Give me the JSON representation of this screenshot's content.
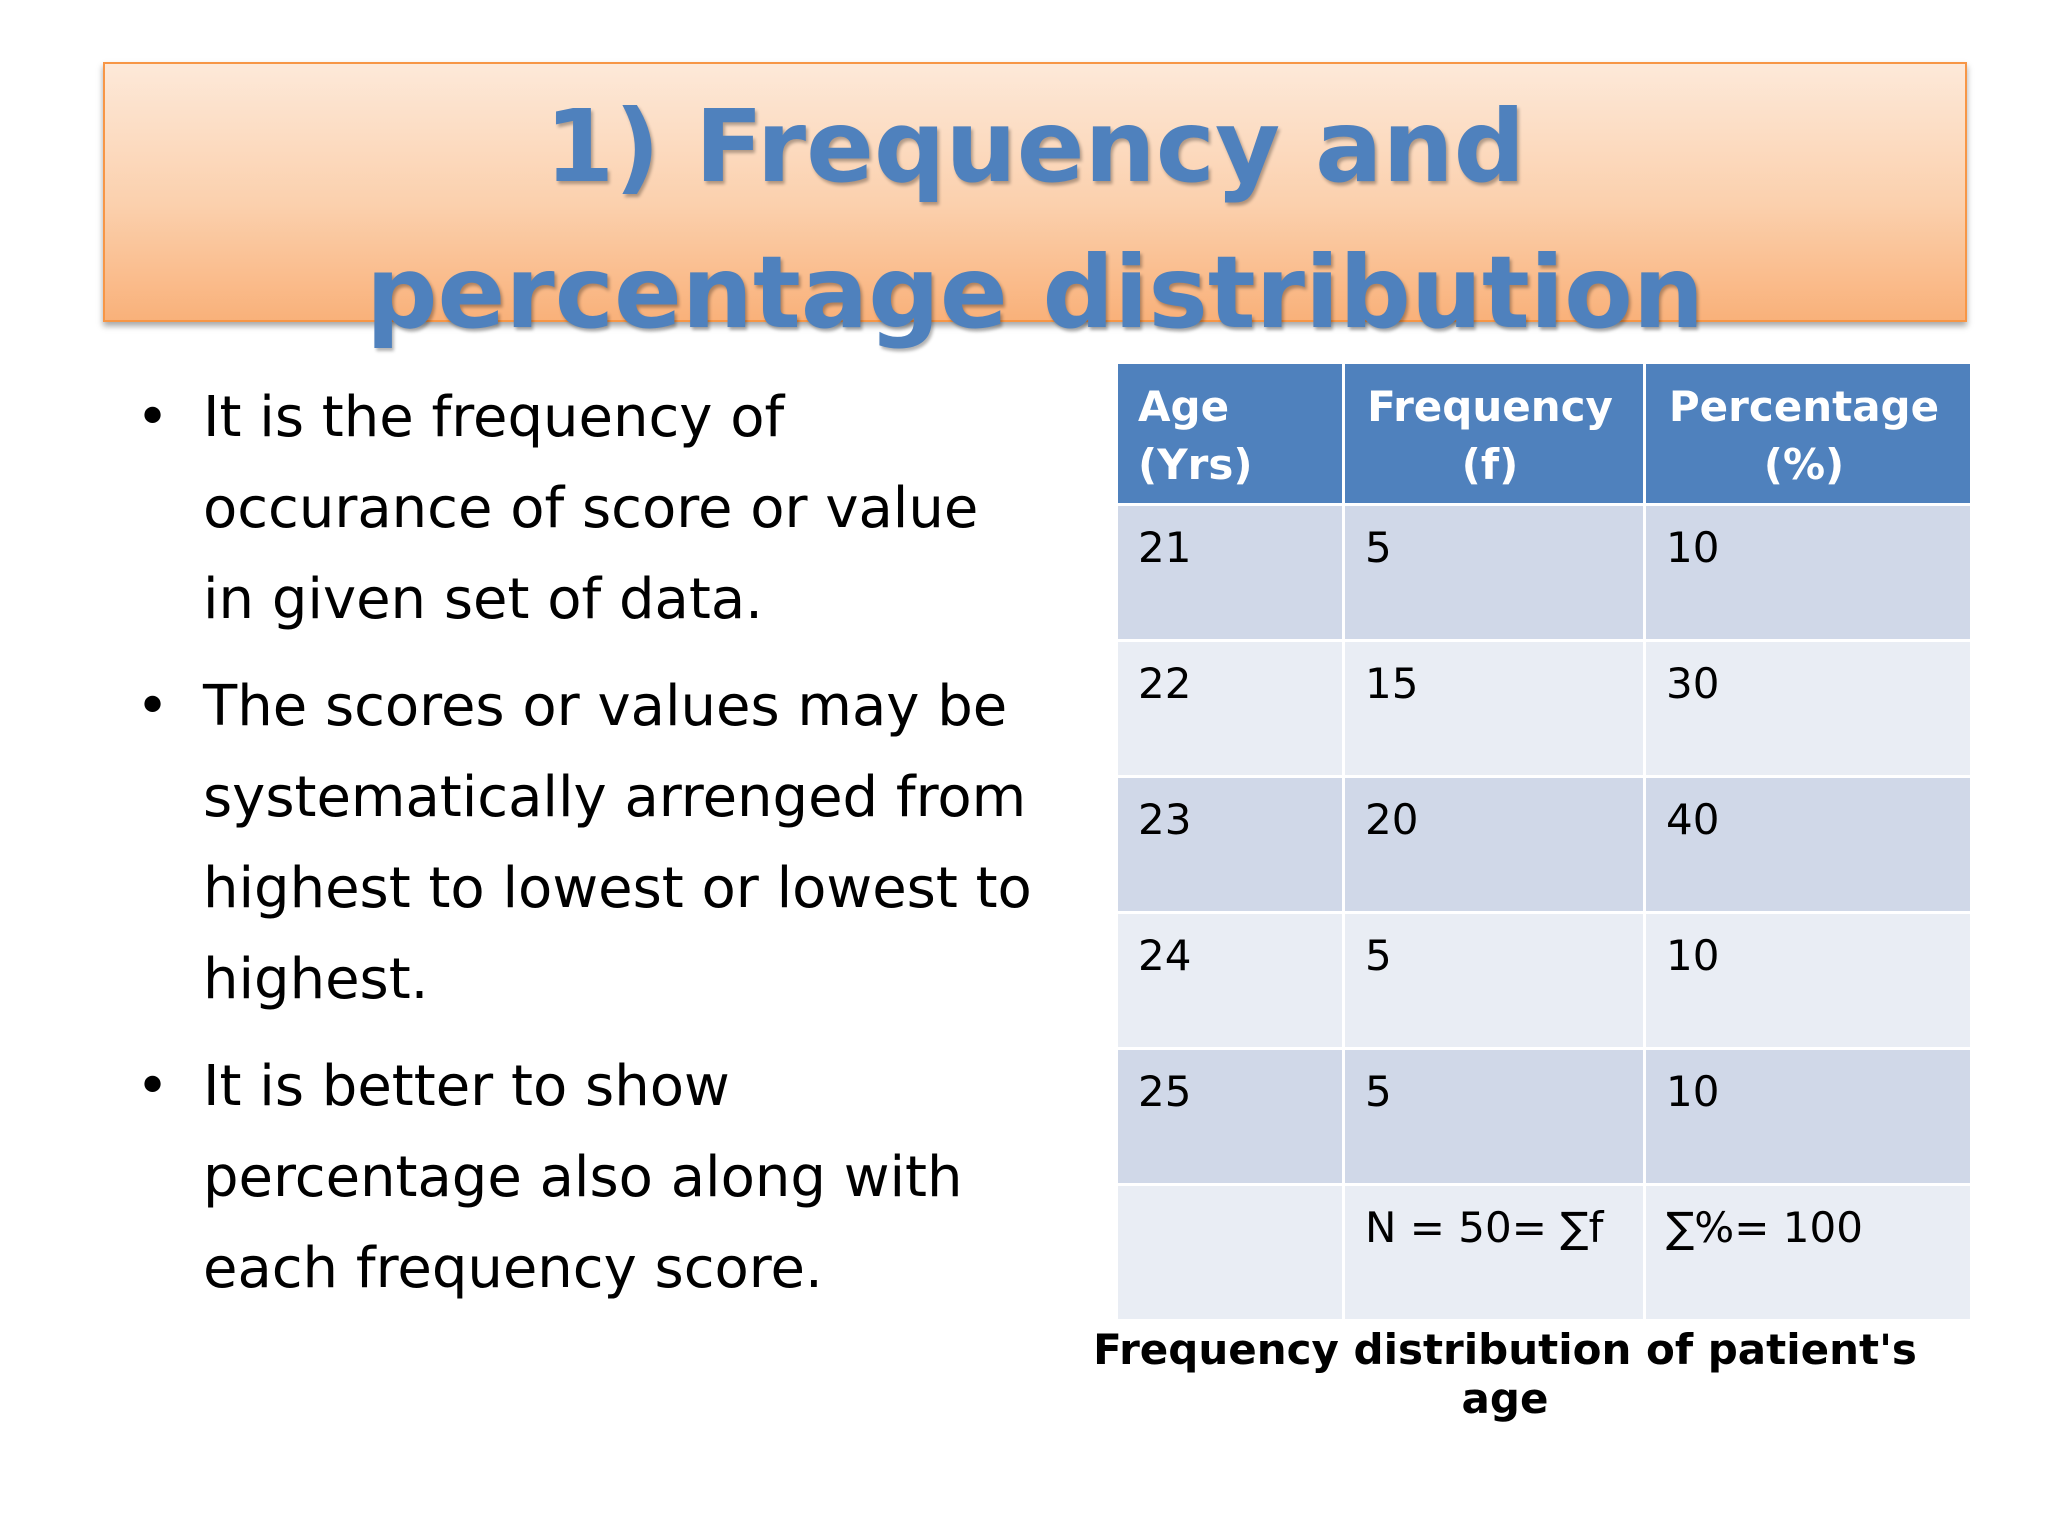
{
  "header": {
    "title": "1) Frequency and percentage distribution"
  },
  "bullets": [
    "It is the frequency of occurance of score or value in given set of data.",
    "The scores or values may be systematically arrenged from highest to lowest or lowest to highest.",
    "It is better to show percentage also along with each frequency score."
  ],
  "table": {
    "headers": [
      [
        "Age",
        "(Yrs)"
      ],
      [
        "Frequency",
        "(f)"
      ],
      [
        "Percentage",
        "(%)"
      ]
    ],
    "rows": [
      [
        21,
        5,
        10
      ],
      [
        22,
        15,
        30
      ],
      [
        23,
        20,
        40
      ],
      [
        24,
        5,
        10
      ],
      [
        25,
        5,
        10
      ]
    ],
    "footer": {
      "frequency": "N = 50= ∑f",
      "percentage": "∑%= 100"
    },
    "caption": "Frequency distribution of patient's age"
  }
}
